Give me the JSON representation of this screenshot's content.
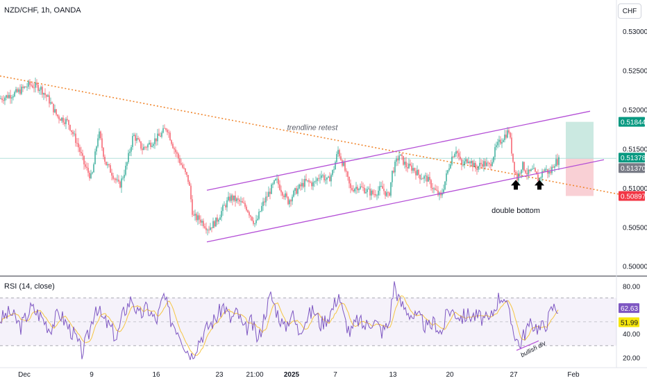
{
  "header": {
    "symbol": "NZD/CHF, 1h, OANDA",
    "currency": "CHF"
  },
  "rsi_header": {
    "label": "RSI (14, close)"
  },
  "chart_data": [
    {
      "type": "candlestick",
      "title": "NZD/CHF, 1h, OANDA",
      "y_ticks": [
        "0.53000",
        "0.52500",
        "0.52000",
        "0.51500",
        "0.51000",
        "0.50500",
        "0.50000"
      ],
      "ylim": [
        0.499,
        0.5325
      ],
      "x_ticks": [
        "Dec",
        "9",
        "16",
        "23",
        "21:00",
        "2025",
        "7",
        "13",
        "20",
        "27",
        "Feb"
      ],
      "current_price": 0.51378,
      "price_labels": [
        {
          "value": "0.51844",
          "color": "#089981"
        },
        {
          "value": "0.51378",
          "color": "#089981"
        },
        {
          "value": "0.51370",
          "color": "#787b86"
        },
        {
          "value": "0.50897",
          "color": "#f23645"
        }
      ],
      "path_points": [
        [
          0,
          0.5214
        ],
        [
          25,
          0.5222
        ],
        [
          42,
          0.5232
        ],
        [
          58,
          0.5228
        ],
        [
          70,
          0.5213
        ],
        [
          82,
          0.5192
        ],
        [
          98,
          0.5184
        ],
        [
          112,
          0.5155
        ],
        [
          122,
          0.5128
        ],
        [
          132,
          0.5112
        ],
        [
          142,
          0.5172
        ],
        [
          152,
          0.5132
        ],
        [
          162,
          0.5118
        ],
        [
          172,
          0.5102
        ],
        [
          182,
          0.5128
        ],
        [
          192,
          0.5168
        ],
        [
          205,
          0.515
        ],
        [
          218,
          0.5158
        ],
        [
          232,
          0.5168
        ],
        [
          240,
          0.5178
        ],
        [
          250,
          0.5152
        ],
        [
          262,
          0.5128
        ],
        [
          272,
          0.5108
        ],
        [
          278,
          0.5063
        ],
        [
          288,
          0.506
        ],
        [
          300,
          0.5048
        ],
        [
          312,
          0.5058
        ],
        [
          322,
          0.5075
        ],
        [
          332,
          0.5088
        ],
        [
          345,
          0.5082
        ],
        [
          355,
          0.5075
        ],
        [
          368,
          0.5053
        ],
        [
          378,
          0.5078
        ],
        [
          390,
          0.5098
        ],
        [
          398,
          0.511
        ],
        [
          405,
          0.5098
        ],
        [
          415,
          0.5083
        ],
        [
          425,
          0.5095
        ],
        [
          440,
          0.5108
        ],
        [
          452,
          0.5105
        ],
        [
          462,
          0.5118
        ],
        [
          472,
          0.5108
        ],
        [
          480,
          0.5122
        ],
        [
          487,
          0.5148
        ],
        [
          495,
          0.5128
        ],
        [
          505,
          0.5098
        ],
        [
          515,
          0.5102
        ],
        [
          525,
          0.5098
        ],
        [
          538,
          0.5092
        ],
        [
          550,
          0.51
        ],
        [
          560,
          0.5088
        ],
        [
          565,
          0.512
        ],
        [
          575,
          0.5142
        ],
        [
          585,
          0.5128
        ],
        [
          595,
          0.5125
        ],
        [
          605,
          0.5115
        ],
        [
          615,
          0.5112
        ],
        [
          625,
          0.5098
        ],
        [
          635,
          0.5088
        ],
        [
          642,
          0.5112
        ],
        [
          650,
          0.5138
        ],
        [
          657,
          0.515
        ],
        [
          665,
          0.5128
        ],
        [
          675,
          0.5138
        ],
        [
          685,
          0.5125
        ],
        [
          695,
          0.5132
        ],
        [
          705,
          0.5128
        ],
        [
          715,
          0.5152
        ],
        [
          725,
          0.5165
        ],
        [
          733,
          0.5173
        ],
        [
          740,
          0.5128
        ],
        [
          745,
          0.5112
        ],
        [
          752,
          0.513
        ],
        [
          760,
          0.5118
        ],
        [
          768,
          0.5122
        ],
        [
          776,
          0.511
        ],
        [
          784,
          0.5125
        ],
        [
          792,
          0.5118
        ],
        [
          798,
          0.5132
        ],
        [
          805,
          0.5135
        ]
      ],
      "trend_channel": {
        "upper": [
          [
            298,
            0.5097
          ],
          [
            850,
            0.5198
          ]
        ],
        "lower": [
          [
            298,
            0.5031
          ],
          [
            870,
            0.5136
          ]
        ],
        "color": "#b44fd6"
      },
      "trendline": {
        "points": [
          [
            0,
            0.5243
          ],
          [
            915,
            0.5088
          ]
        ],
        "color": "#f0862e",
        "style": "dotted"
      },
      "position_box": {
        "x_start": 815,
        "x_end": 855,
        "target": 0.51844,
        "entry": 0.51378,
        "stop": 0.50897,
        "profit_color": "#cbe9e1",
        "loss_color": "#f9d0d5"
      },
      "horizontal_line": {
        "value": 0.51378,
        "color": "#b2dfdb"
      },
      "annotations": [
        {
          "text": "trendline retest",
          "x": 450,
          "value": 0.5174,
          "style": "italic"
        },
        {
          "text": "double bottom",
          "x": 743,
          "value": 0.5068
        }
      ],
      "arrows": [
        {
          "x": 743,
          "value": 0.5112
        },
        {
          "x": 777,
          "value": 0.5112
        }
      ]
    },
    {
      "type": "line",
      "title": "RSI (14, close)",
      "y_ticks": [
        "80.00",
        "40.00",
        "20.00"
      ],
      "ylim": [
        15,
        86
      ],
      "bands": {
        "upper": 70,
        "middle": 50,
        "lower": 30
      },
      "rsi_path": [
        [
          0,
          52
        ],
        [
          15,
          58
        ],
        [
          30,
          46
        ],
        [
          45,
          62
        ],
        [
          60,
          54
        ],
        [
          72,
          44
        ],
        [
          85,
          58
        ],
        [
          98,
          46
        ],
        [
          108,
          38
        ],
        [
          118,
          24
        ],
        [
          128,
          40
        ],
        [
          138,
          64
        ],
        [
          148,
          52
        ],
        [
          158,
          46
        ],
        [
          168,
          36
        ],
        [
          178,
          58
        ],
        [
          190,
          70
        ],
        [
          200,
          54
        ],
        [
          212,
          62
        ],
        [
          225,
          50
        ],
        [
          236,
          72
        ],
        [
          246,
          52
        ],
        [
          258,
          42
        ],
        [
          268,
          28
        ],
        [
          276,
          22
        ],
        [
          288,
          36
        ],
        [
          300,
          46
        ],
        [
          312,
          54
        ],
        [
          322,
          64
        ],
        [
          332,
          52
        ],
        [
          342,
          58
        ],
        [
          352,
          42
        ],
        [
          362,
          50
        ],
        [
          372,
          34
        ],
        [
          382,
          58
        ],
        [
          390,
          72
        ],
        [
          398,
          60
        ],
        [
          410,
          44
        ],
        [
          420,
          58
        ],
        [
          430,
          42
        ],
        [
          440,
          52
        ],
        [
          452,
          60
        ],
        [
          462,
          48
        ],
        [
          472,
          54
        ],
        [
          480,
          62
        ],
        [
          488,
          74
        ],
        [
          495,
          54
        ],
        [
          505,
          40
        ],
        [
          515,
          52
        ],
        [
          525,
          46
        ],
        [
          538,
          52
        ],
        [
          550,
          42
        ],
        [
          560,
          48
        ],
        [
          568,
          82
        ],
        [
          576,
          66
        ],
        [
          586,
          60
        ],
        [
          596,
          54
        ],
        [
          606,
          52
        ],
        [
          616,
          44
        ],
        [
          626,
          50
        ],
        [
          636,
          40
        ],
        [
          645,
          60
        ],
        [
          655,
          58
        ],
        [
          665,
          54
        ],
        [
          675,
          56
        ],
        [
          690,
          54
        ],
        [
          705,
          50
        ],
        [
          718,
          70
        ],
        [
          726,
          72
        ],
        [
          734,
          54
        ],
        [
          742,
          40
        ],
        [
          748,
          30
        ],
        [
          758,
          44
        ],
        [
          768,
          48
        ],
        [
          778,
          44
        ],
        [
          788,
          50
        ],
        [
          796,
          62
        ],
        [
          805,
          62
        ]
      ],
      "ma_value": 51.99,
      "rsi_value": 62.63,
      "value_labels": [
        {
          "value": "62.63",
          "color": "#7e57c2"
        },
        {
          "value": "51.99",
          "color": "#f5e50a"
        }
      ],
      "divergence": {
        "points": [
          [
            744,
            26
          ],
          [
            776,
            34
          ]
        ],
        "label": "bullish div",
        "color": "#b44fd6"
      }
    }
  ]
}
